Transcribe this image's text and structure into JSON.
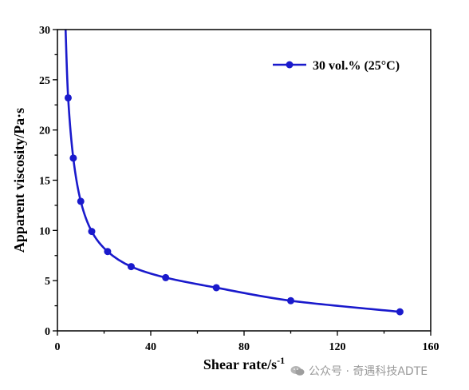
{
  "chart_data": {
    "type": "line",
    "xlabel": "Shear rate/s",
    "xlabel_superscript": "-1",
    "ylabel": "Apparent viscosity/Pa·s",
    "xlim": [
      0,
      160
    ],
    "ylim": [
      0,
      30
    ],
    "x_ticks": [
      0,
      40,
      80,
      120,
      160
    ],
    "y_ticks": [
      0,
      5,
      10,
      15,
      20,
      25,
      30
    ],
    "grid": false,
    "legend_position": "top-right",
    "series": [
      {
        "name": "30 vol.% (25°C)",
        "color": "#1a1acc",
        "points": [
          [
            4.6,
            23.2
          ],
          [
            6.8,
            17.2
          ],
          [
            10.0,
            12.9
          ],
          [
            14.7,
            9.9
          ],
          [
            21.5,
            7.9
          ],
          [
            31.6,
            6.4
          ],
          [
            46.4,
            5.3
          ],
          [
            68.1,
            4.3
          ],
          [
            100.0,
            3.0
          ],
          [
            146.8,
            1.9
          ]
        ],
        "line_start": [
          3.5,
          30
        ]
      }
    ]
  },
  "watermark": {
    "text": "公众号 · 奇遇科技ADTE"
  }
}
